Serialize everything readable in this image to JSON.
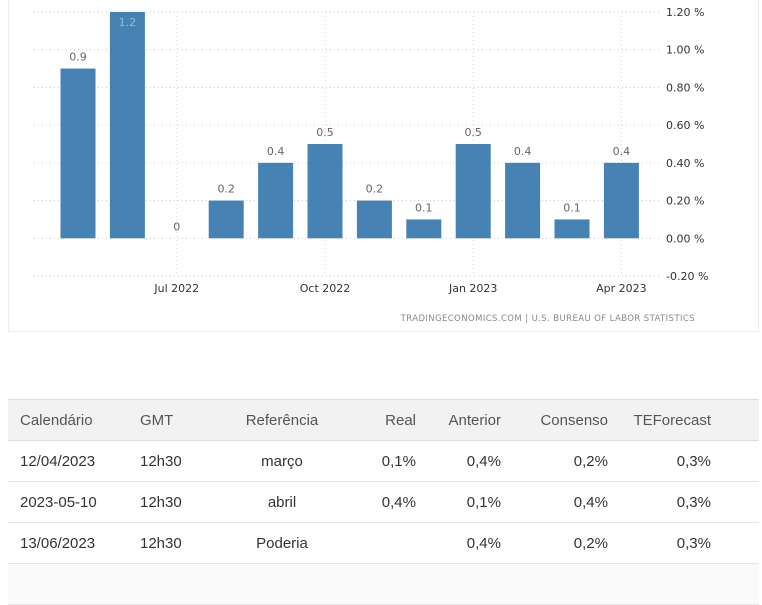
{
  "chart_data": {
    "type": "bar",
    "categories": [
      "2022-05",
      "2022-06",
      "2022-07",
      "2022-08",
      "2022-09",
      "2022-10",
      "2022-11",
      "2022-12",
      "2023-01",
      "2023-02",
      "2023-03",
      "2023-04"
    ],
    "values": [
      0.9,
      1.2,
      0,
      0.2,
      0.4,
      0.5,
      0.2,
      0.1,
      0.5,
      0.4,
      0.1,
      0.4
    ],
    "value_labels": [
      "0.9",
      "1.2",
      "0",
      "0.2",
      "0.4",
      "0.5",
      "0.2",
      "0.1",
      "0.5",
      "0.4",
      "0.1",
      "0.4"
    ],
    "y_ticks": [
      1.2,
      1.0,
      0.8,
      0.6,
      0.4,
      0.2,
      0.0,
      -0.2
    ],
    "y_tick_labels": [
      "1.20 %",
      "1.00 %",
      "0.80 %",
      "0.60 %",
      "0.40 %",
      "0.20 %",
      "0.00 %",
      "-0.20 %"
    ],
    "x_tick_labels": [
      {
        "category": "2022-07",
        "label": "Jul 2022"
      },
      {
        "category": "2022-10",
        "label": "Oct 2022"
      },
      {
        "category": "2023-01",
        "label": "Jan 2023"
      },
      {
        "category": "2023-04",
        "label": "Apr 2023"
      }
    ],
    "ylim": [
      -0.2,
      1.2
    ],
    "grid": true,
    "bar_color": "#4682b4",
    "source": "TRADINGECONOMICS.COM  |  U.S. BUREAU OF LABOR STATISTICS"
  },
  "table": {
    "headers": [
      "Calendário",
      "GMT",
      "Referência",
      "Real",
      "Anterior",
      "Consenso",
      "TEForecast"
    ],
    "rows": [
      [
        "12/04/2023",
        "12h30",
        "março",
        "0,1%",
        "0,4%",
        "0,2%",
        "0,3%"
      ],
      [
        "2023-05-10",
        "12h30",
        "abril",
        "0,4%",
        "0,1%",
        "0,4%",
        "0,3%"
      ],
      [
        "13/06/2023",
        "12h30",
        "Poderia",
        "",
        "0,4%",
        "0,2%",
        "0,3%"
      ]
    ]
  }
}
